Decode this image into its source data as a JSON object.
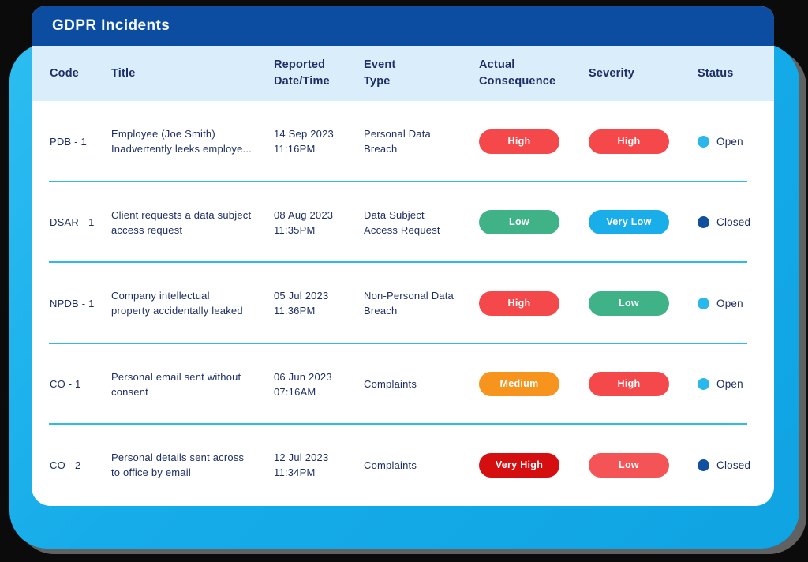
{
  "header": {
    "title": "GDPR Incidents"
  },
  "colors": {
    "page_bg": "#0B0B0B",
    "frame": "#16ACE9",
    "header_bg": "#0C4DA2",
    "table_header_bg": "#D9EDFB",
    "divider": "#2FB9E8",
    "text": "#1E2F66",
    "card_bg": "#FFFFFF",
    "red": "#F4484B",
    "dark_red": "#D50E10",
    "light_red": "#F55456",
    "green": "#3FB287",
    "cyan": "#19AEEA",
    "orange": "#F7941E",
    "open_dot": "#29B7EC",
    "closed_dot": "#114FA0"
  },
  "table": {
    "columns": [
      {
        "key": "code",
        "lines": [
          "Code"
        ]
      },
      {
        "key": "title",
        "lines": [
          "Title"
        ]
      },
      {
        "key": "reported",
        "lines": [
          "Reported",
          "Date/Time"
        ]
      },
      {
        "key": "event",
        "lines": [
          "Event",
          "Type"
        ]
      },
      {
        "key": "consequence",
        "lines": [
          "Actual",
          "Consequence"
        ]
      },
      {
        "key": "severity",
        "lines": [
          "Severity"
        ]
      },
      {
        "key": "status",
        "lines": [
          "Status"
        ]
      }
    ],
    "rows": [
      {
        "code": "PDB - 1",
        "title_lines": [
          "Employee (Joe Smith)",
          "Inadvertently leeks employe..."
        ],
        "reported_lines": [
          "14 Sep 2023",
          "11:16PM"
        ],
        "event_lines": [
          "Personal Data",
          "Breach"
        ],
        "consequence": {
          "label": "High",
          "color": "#F4484B"
        },
        "severity": {
          "label": "High",
          "color": "#F4484B"
        },
        "status": {
          "label": "Open",
          "color": "#29B7EC"
        }
      },
      {
        "code": "DSAR - 1",
        "title_lines": [
          "Client requests a data subject",
          "access request"
        ],
        "reported_lines": [
          "08 Aug 2023",
          "11:35PM"
        ],
        "event_lines": [
          "Data Subject",
          "Access Request"
        ],
        "consequence": {
          "label": "Low",
          "color": "#3FB287"
        },
        "severity": {
          "label": "Very Low",
          "color": "#19AEEA"
        },
        "status": {
          "label": "Closed",
          "color": "#114FA0"
        }
      },
      {
        "code": "NPDB - 1",
        "title_lines": [
          "Company intellectual",
          "property accidentally leaked"
        ],
        "reported_lines": [
          "05 Jul 2023",
          "11:36PM"
        ],
        "event_lines": [
          "Non-Personal Data",
          "Breach"
        ],
        "consequence": {
          "label": "High",
          "color": "#F4484B"
        },
        "severity": {
          "label": "Low",
          "color": "#3FB287"
        },
        "status": {
          "label": "Open",
          "color": "#29B7EC"
        }
      },
      {
        "code": "CO - 1",
        "title_lines": [
          "Personal email sent without",
          "consent"
        ],
        "reported_lines": [
          "06 Jun 2023",
          "07:16AM"
        ],
        "event_lines": [
          "Complaints"
        ],
        "consequence": {
          "label": "Medium",
          "color": "#F7941E"
        },
        "severity": {
          "label": "High",
          "color": "#F4484B"
        },
        "status": {
          "label": "Open",
          "color": "#29B7EC"
        }
      },
      {
        "code": "CO - 2",
        "title_lines": [
          "Personal details sent across",
          "to office by email"
        ],
        "reported_lines": [
          "12 Jul 2023",
          "11:34PM"
        ],
        "event_lines": [
          "Complaints"
        ],
        "consequence": {
          "label": "Very High",
          "color": "#D50E10"
        },
        "severity": {
          "label": "Low",
          "color": "#F55456"
        },
        "status": {
          "label": "Closed",
          "color": "#114FA0"
        }
      }
    ]
  }
}
